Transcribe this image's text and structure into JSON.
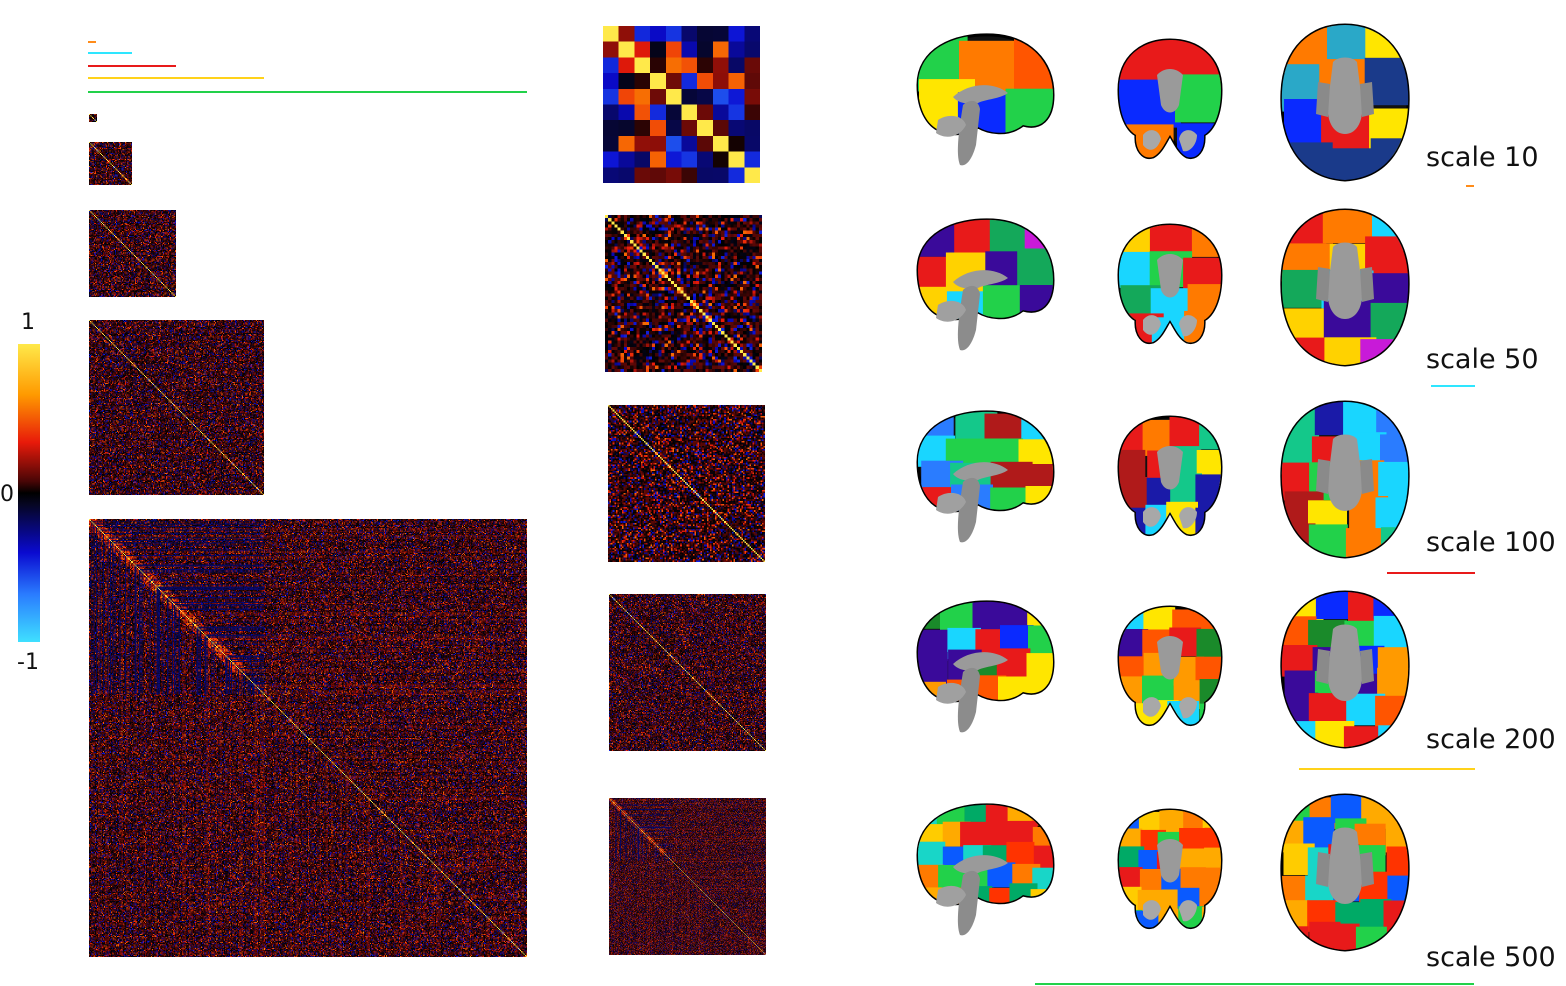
{
  "colorbar": {
    "max_label": "1",
    "mid_label": "0",
    "min_label": "-1"
  },
  "scales": [
    {
      "label": "scale 10",
      "n": 10,
      "color": "#ff8c1a"
    },
    {
      "label": "scale 50",
      "n": 50,
      "color": "#2ee6ff"
    },
    {
      "label": "scale 100",
      "n": 100,
      "color": "#e81a1a"
    },
    {
      "label": "scale 200",
      "n": 200,
      "color": "#ffd21a"
    },
    {
      "label": "scale 500",
      "n": 500,
      "color": "#22d14a"
    }
  ],
  "brain_views": [
    "sagittal",
    "coronal",
    "axial"
  ]
}
